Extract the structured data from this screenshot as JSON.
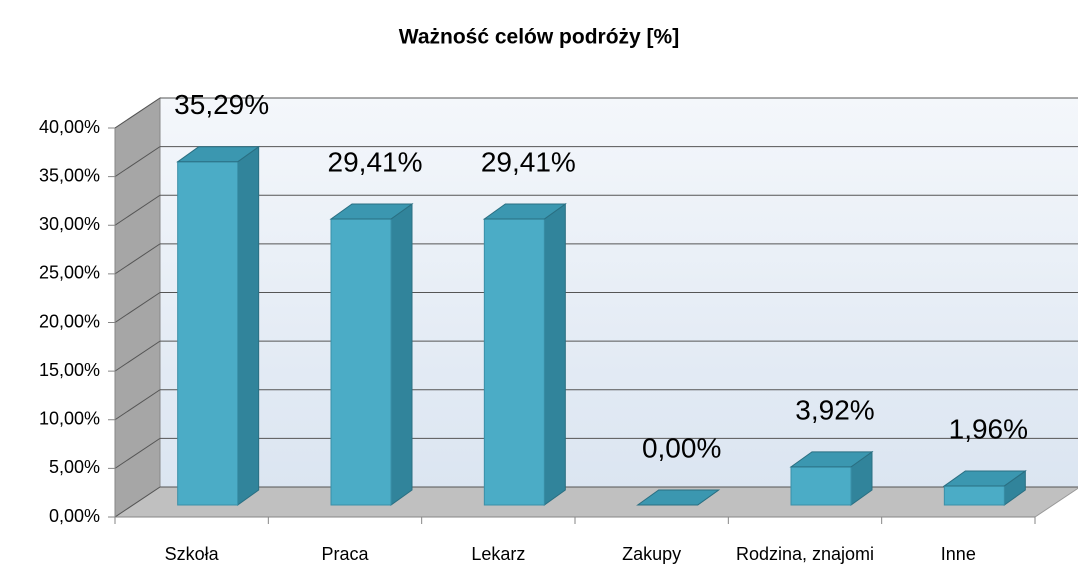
{
  "chart_data": {
    "type": "bar3d",
    "title": "Ważność celów podróży [%]",
    "categories": [
      "Szkoła",
      "Praca",
      "Lekarz",
      "Zakupy",
      "Rodzina, znajomi",
      "Inne"
    ],
    "values": [
      35.29,
      29.41,
      29.41,
      0,
      3.92,
      1.96
    ],
    "value_labels": [
      "35,29%",
      "29,41%",
      "29,41%",
      "0,00%",
      "3,92%",
      "1,96%"
    ],
    "color": "#4bacc6",
    "ylim": [
      0,
      40
    ],
    "yticks": [
      {
        "value": 0,
        "label": "0,00%"
      },
      {
        "value": 5,
        "label": "5,00%"
      },
      {
        "value": 10,
        "label": "10,00%"
      },
      {
        "value": 15,
        "label": "15,00%"
      },
      {
        "value": 20,
        "label": "20,00%"
      },
      {
        "value": 25,
        "label": "25,00%"
      },
      {
        "value": 30,
        "label": "30,00%"
      },
      {
        "value": 35,
        "label": "35,00%"
      },
      {
        "value": 40,
        "label": "40,00%"
      }
    ],
    "grid": true
  }
}
